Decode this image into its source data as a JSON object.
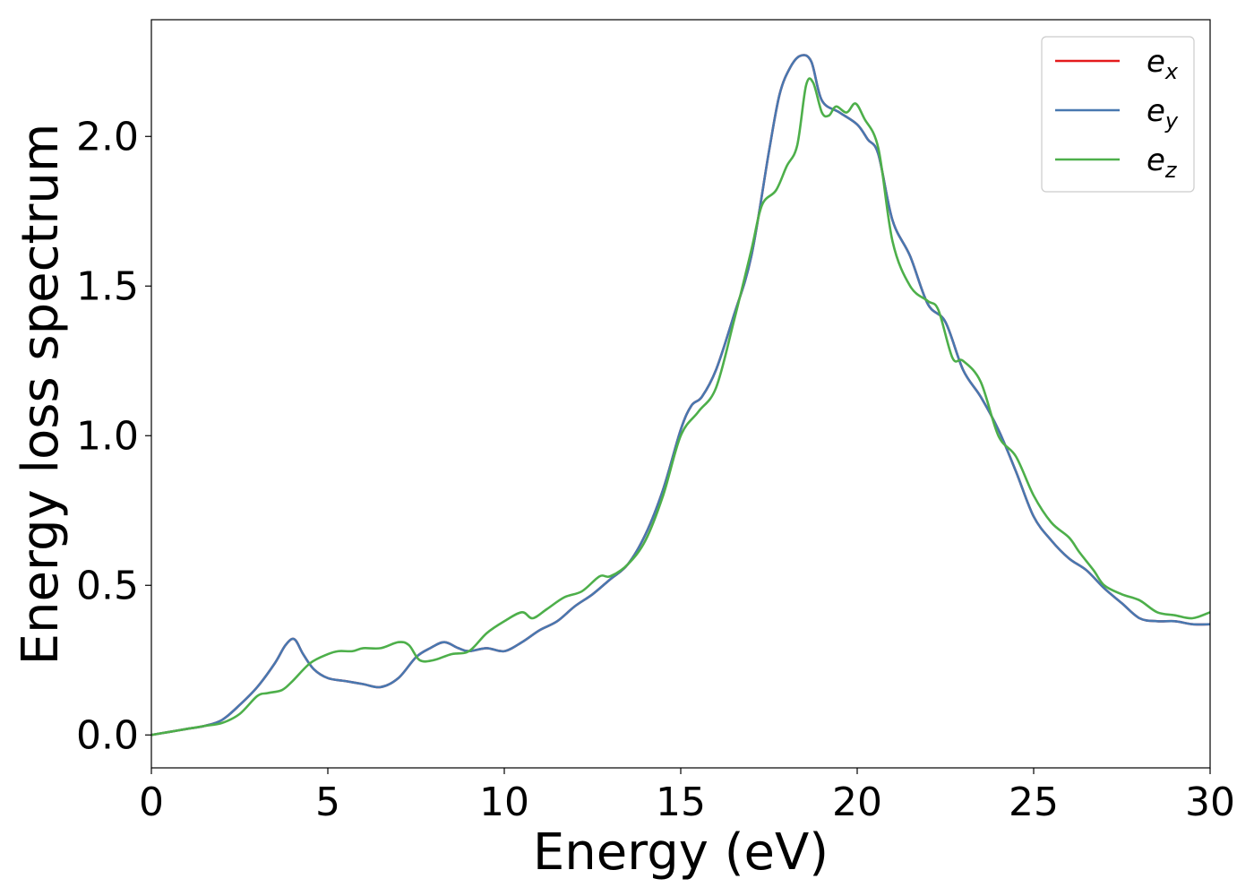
{
  "chart_data": {
    "type": "line",
    "xlabel": "Energy (eV)",
    "ylabel": "Energy loss spectrum",
    "xlim": [
      0,
      30
    ],
    "ylim": [
      -0.11,
      2.39
    ],
    "xticks": [
      "0",
      "5",
      "10",
      "15",
      "20",
      "25",
      "30"
    ],
    "yticks": [
      "0.0",
      "0.5",
      "1.0",
      "1.5",
      "2.0"
    ],
    "grid": false,
    "legend_position": "top-right",
    "series": [
      {
        "name": "e",
        "subscript": "x",
        "color": "#e41a1c",
        "x": [
          0,
          0.5,
          1,
          1.5,
          2,
          2.5,
          3,
          3.5,
          3.8,
          4.05,
          4.3,
          4.6,
          5,
          5.5,
          6,
          6.5,
          7,
          7.5,
          7.9,
          8.3,
          8.7,
          9,
          9.5,
          10,
          10.5,
          11,
          11.5,
          12,
          12.5,
          13,
          13.5,
          14,
          14.5,
          15,
          15.3,
          15.6,
          16,
          16.5,
          17,
          17.5,
          17.8,
          18.1,
          18.4,
          18.7,
          19,
          19.5,
          20,
          20.3,
          20.6,
          21,
          21.5,
          22,
          22.5,
          23,
          23.5,
          24,
          24.5,
          25,
          25.5,
          26,
          26.5,
          27,
          27.5,
          28,
          28.5,
          29,
          29.5,
          30
        ],
        "values": [
          0,
          0.01,
          0.02,
          0.03,
          0.05,
          0.1,
          0.16,
          0.24,
          0.3,
          0.32,
          0.27,
          0.22,
          0.19,
          0.18,
          0.17,
          0.16,
          0.19,
          0.26,
          0.29,
          0.31,
          0.29,
          0.28,
          0.29,
          0.28,
          0.31,
          0.35,
          0.38,
          0.43,
          0.47,
          0.52,
          0.57,
          0.67,
          0.82,
          1.02,
          1.1,
          1.13,
          1.22,
          1.4,
          1.6,
          1.95,
          2.14,
          2.23,
          2.27,
          2.25,
          2.12,
          2.08,
          2.04,
          1.99,
          1.94,
          1.72,
          1.6,
          1.44,
          1.38,
          1.22,
          1.13,
          1.02,
          0.88,
          0.73,
          0.65,
          0.59,
          0.55,
          0.49,
          0.44,
          0.39,
          0.38,
          0.38,
          0.37,
          0.37
        ]
      },
      {
        "name": "e",
        "subscript": "y",
        "color": "#4878b0",
        "x": [
          0,
          0.5,
          1,
          1.5,
          2,
          2.5,
          3,
          3.5,
          3.8,
          4.05,
          4.3,
          4.6,
          5,
          5.5,
          6,
          6.5,
          7,
          7.5,
          7.9,
          8.3,
          8.7,
          9,
          9.5,
          10,
          10.5,
          11,
          11.5,
          12,
          12.5,
          13,
          13.5,
          14,
          14.5,
          15,
          15.3,
          15.6,
          16,
          16.5,
          17,
          17.5,
          17.8,
          18.1,
          18.4,
          18.7,
          19,
          19.5,
          20,
          20.3,
          20.6,
          21,
          21.5,
          22,
          22.5,
          23,
          23.5,
          24,
          24.5,
          25,
          25.5,
          26,
          26.5,
          27,
          27.5,
          28,
          28.5,
          29,
          29.5,
          30
        ],
        "values": [
          0,
          0.01,
          0.02,
          0.03,
          0.05,
          0.1,
          0.16,
          0.24,
          0.3,
          0.32,
          0.27,
          0.22,
          0.19,
          0.18,
          0.17,
          0.16,
          0.19,
          0.26,
          0.29,
          0.31,
          0.29,
          0.28,
          0.29,
          0.28,
          0.31,
          0.35,
          0.38,
          0.43,
          0.47,
          0.52,
          0.57,
          0.67,
          0.82,
          1.02,
          1.1,
          1.13,
          1.22,
          1.4,
          1.6,
          1.95,
          2.14,
          2.23,
          2.27,
          2.25,
          2.12,
          2.08,
          2.04,
          1.99,
          1.94,
          1.72,
          1.6,
          1.44,
          1.38,
          1.22,
          1.13,
          1.02,
          0.88,
          0.73,
          0.65,
          0.59,
          0.55,
          0.49,
          0.44,
          0.39,
          0.38,
          0.38,
          0.37,
          0.37
        ]
      },
      {
        "name": "e",
        "subscript": "z",
        "color": "#4daf4a",
        "x": [
          0,
          0.5,
          1,
          1.5,
          2,
          2.5,
          3,
          3.3,
          3.7,
          4,
          4.5,
          5,
          5.3,
          5.7,
          6,
          6.5,
          7,
          7.3,
          7.6,
          8,
          8.5,
          9,
          9.5,
          10,
          10.5,
          10.8,
          11.2,
          11.7,
          12.2,
          12.7,
          13,
          13.5,
          14,
          14.5,
          15,
          15.5,
          16,
          16.5,
          17,
          17.3,
          17.7,
          18,
          18.3,
          18.55,
          18.75,
          19,
          19.2,
          19.4,
          19.7,
          19.95,
          20.2,
          20.6,
          21,
          21.5,
          22,
          22.3,
          22.7,
          23,
          23.5,
          24,
          24.5,
          25,
          25.5,
          26,
          26.3,
          26.7,
          27,
          27.5,
          28,
          28.5,
          29,
          29.5,
          30
        ],
        "values": [
          0,
          0.01,
          0.02,
          0.03,
          0.04,
          0.07,
          0.13,
          0.14,
          0.15,
          0.18,
          0.24,
          0.27,
          0.28,
          0.28,
          0.29,
          0.29,
          0.31,
          0.3,
          0.25,
          0.25,
          0.27,
          0.28,
          0.34,
          0.38,
          0.41,
          0.39,
          0.42,
          0.46,
          0.48,
          0.53,
          0.53,
          0.57,
          0.65,
          0.8,
          1.0,
          1.08,
          1.16,
          1.38,
          1.62,
          1.77,
          1.82,
          1.9,
          1.97,
          2.17,
          2.18,
          2.08,
          2.07,
          2.1,
          2.08,
          2.11,
          2.06,
          1.96,
          1.65,
          1.5,
          1.45,
          1.42,
          1.26,
          1.25,
          1.18,
          1.0,
          0.93,
          0.8,
          0.71,
          0.66,
          0.61,
          0.55,
          0.5,
          0.47,
          0.45,
          0.41,
          0.4,
          0.39,
          0.41
        ]
      }
    ]
  }
}
